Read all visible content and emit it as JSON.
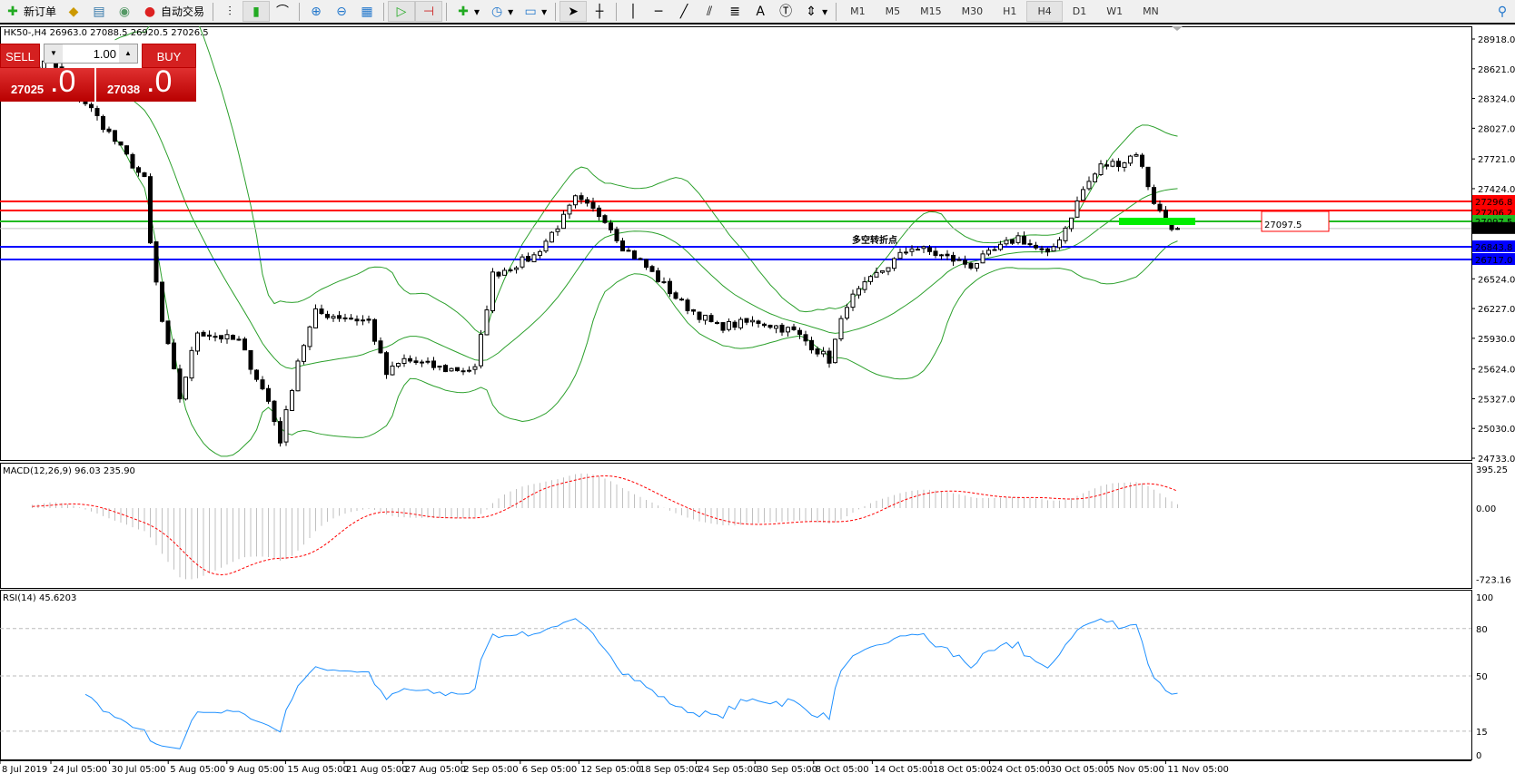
{
  "toolbar": {
    "new_order": "新订单",
    "auto_trading": "自动交易",
    "timeframes": [
      "M1",
      "M5",
      "M15",
      "M30",
      "H1",
      "H4",
      "D1",
      "W1",
      "MN"
    ],
    "active_timeframe": "H4"
  },
  "chart": {
    "symbol_info": "HK50-,H4  26963.0 27088.5 26920.5 27026.5",
    "annotation": "多空转折点",
    "annotation_color": "#22cc22",
    "level_label": "27097.5",
    "price_ticks": [
      "28918.0",
      "28621.0",
      "28324.0",
      "28027.0",
      "27721.0",
      "27424.0",
      "26524.0",
      "26227.0",
      "25930.0",
      "25624.0",
      "25327.0",
      "25030.0",
      "24733.0"
    ],
    "price_tick_values": [
      28918,
      28621,
      28324,
      28027,
      27721,
      27424,
      26524,
      26227,
      25930,
      25624,
      25327,
      25030,
      24733
    ],
    "levels": [
      {
        "label": "27296.8",
        "value": 27296.8,
        "color": "#ff0000"
      },
      {
        "label": "27206.2",
        "value": 27206.2,
        "color": "#ff0000"
      },
      {
        "label": "27097.5",
        "value": 27097.5,
        "color": "#22bb22"
      },
      {
        "label": "27026.5",
        "value": 27026.5,
        "color": "#000000"
      },
      {
        "label": "26843.8",
        "value": 26843.8,
        "color": "#0000ff"
      },
      {
        "label": "26717.0",
        "value": 26717.0,
        "color": "#0000ff"
      }
    ],
    "price_path": [
      [
        0,
        28500
      ],
      [
        8,
        28700
      ],
      [
        15,
        28214
      ],
      [
        24,
        27507
      ],
      [
        25,
        26866
      ],
      [
        27,
        26092
      ],
      [
        30,
        25337
      ],
      [
        33,
        25998
      ],
      [
        40,
        25900
      ],
      [
        45,
        25300
      ],
      [
        47,
        24913
      ],
      [
        50,
        25715
      ],
      [
        53,
        26186
      ],
      [
        62,
        26100
      ],
      [
        65,
        25573
      ],
      [
        68,
        25715
      ],
      [
        75,
        25620
      ],
      [
        80,
        25620
      ],
      [
        83,
        26563
      ],
      [
        90,
        26752
      ],
      [
        95,
        27130
      ],
      [
        97,
        27318
      ],
      [
        102,
        27130
      ],
      [
        105,
        26847
      ],
      [
        108,
        26700
      ],
      [
        115,
        26280
      ],
      [
        121,
        26045
      ],
      [
        128,
        26100
      ],
      [
        134,
        25998
      ],
      [
        140,
        25715
      ],
      [
        143,
        26280
      ],
      [
        148,
        26563
      ],
      [
        154,
        26847
      ],
      [
        164,
        26658
      ],
      [
        172,
        26941
      ],
      [
        177,
        26752
      ],
      [
        180,
        27035
      ],
      [
        183,
        27413
      ],
      [
        186,
        27648
      ],
      [
        190,
        27700
      ],
      [
        192,
        27790
      ],
      [
        195,
        27300
      ],
      [
        197,
        27083
      ],
      [
        199,
        27026.5
      ]
    ],
    "time_labels": [
      "8 Jul 2019",
      "24 Jul 05:00",
      "30 Jul 05:00",
      "5 Aug 05:00",
      "9 Aug 05:00",
      "15 Aug 05:00",
      "21 Aug 05:00",
      "27 Aug 05:00",
      "2 Sep 05:00",
      "6 Sep 05:00",
      "12 Sep 05:00",
      "18 Sep 05:00",
      "24 Sep 05:00",
      "30 Sep 05:00",
      "8 Oct 05:00",
      "14 Oct 05:00",
      "18 Oct 05:00",
      "24 Oct 05:00",
      "30 Oct 05:00",
      "5 Nov 05:00",
      "11 Nov 05:00"
    ]
  },
  "macd": {
    "title": "MACD(12,26,9) 96.03 235.90",
    "ticks": [
      "395.25",
      "0.00",
      "-723.16"
    ],
    "signal_color": "#ff0000",
    "hist_color": "#c0c0c0"
  },
  "rsi": {
    "title": "RSI(14) 45.6203",
    "ticks": [
      "100",
      "80",
      "50",
      "15",
      "0"
    ],
    "color": "#1e90ff"
  },
  "trade": {
    "sell": "SELL",
    "buy": "BUY",
    "lot": "1.00",
    "sell_price": "27025",
    "sell_frac": ".0",
    "buy_price": "27038",
    "buy_frac": ".0"
  },
  "bands_color": "#2ca02c"
}
